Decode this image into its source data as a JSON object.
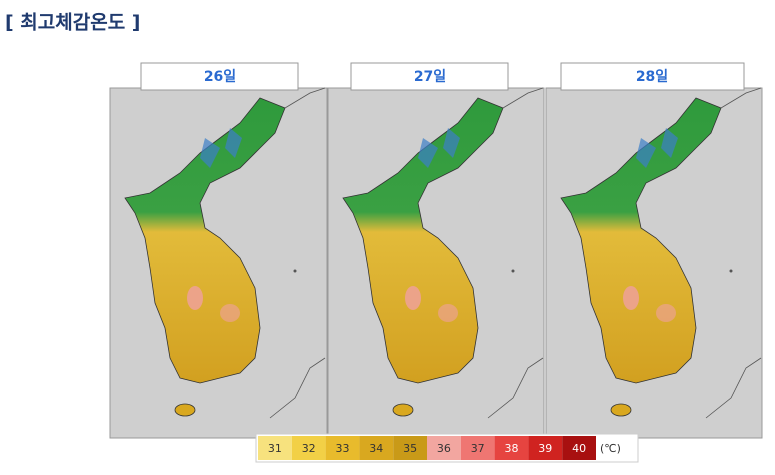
{
  "title": "[ 최고체감온도 ]",
  "panels": [
    {
      "label": "26일"
    },
    {
      "label": "27일"
    },
    {
      "label": "28일"
    }
  ],
  "legend": {
    "unit": "(℃)",
    "items": [
      {
        "label": 31,
        "color": "#f7e27e"
      },
      {
        "label": 32,
        "color": "#f2d046"
      },
      {
        "label": 33,
        "color": "#e8bb2c"
      },
      {
        "label": 34,
        "color": "#d9a81f"
      },
      {
        "label": 35,
        "color": "#c99a18"
      },
      {
        "label": 36,
        "color": "#f2a6a0"
      },
      {
        "label": 37,
        "color": "#ef7672"
      },
      {
        "label": 38,
        "color": "#e64440"
      },
      {
        "label": 39,
        "color": "#d02320"
      },
      {
        "label": 40,
        "color": "#a81010"
      }
    ]
  }
}
